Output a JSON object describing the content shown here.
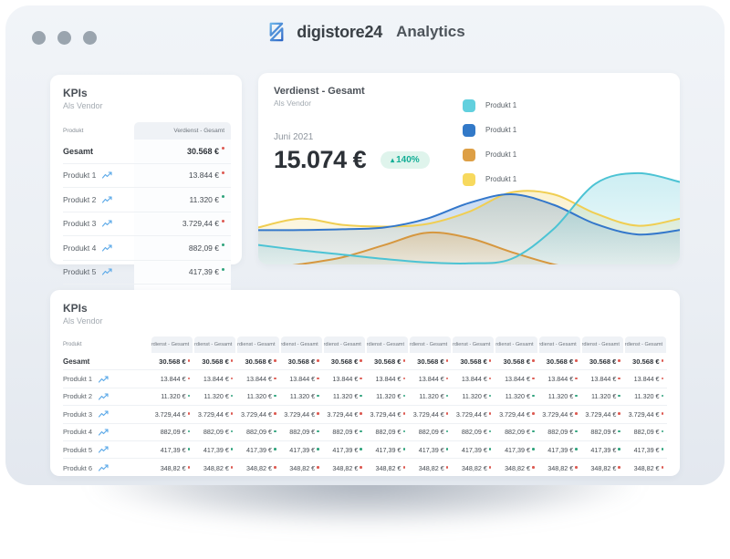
{
  "header": {
    "brand": "digistore",
    "brand_suffix": "24",
    "app": "Analytics"
  },
  "colors": {
    "mark_red": "#dd5a52",
    "mark_green": "#2fa37c",
    "badge_bg": "#dff4ec",
    "badge_text": "#13ae96",
    "logo_blue_light": "#6fb5e8",
    "logo_blue_dark": "#2d66c6",
    "spark_blue": "#5aa8e8"
  },
  "left_card": {
    "title": "KPIs",
    "subtitle": "Als Vendor",
    "product_col": "Produkt",
    "value_col": "Verdienst - Gesamt"
  },
  "bottom_card": {
    "title": "KPIs",
    "subtitle": "Als Vendor",
    "product_col": "Produkt",
    "value_col": "Verdienst - Gesamt",
    "value_col_count": 12
  },
  "kpi_rows": [
    {
      "name": "Gesamt",
      "value": "30.568 €",
      "bold": true,
      "has_spark": false,
      "mark": "#dd5a52"
    },
    {
      "name": "Produkt 1",
      "value": "13.844 €",
      "bold": false,
      "has_spark": true,
      "mark": "#dd5a52"
    },
    {
      "name": "Produkt 2",
      "value": "11.320 €",
      "bold": false,
      "has_spark": true,
      "mark": "#2fa37c"
    },
    {
      "name": "Produkt 3",
      "value": "3.729,44 €",
      "bold": false,
      "has_spark": true,
      "mark": "#dd5a52"
    },
    {
      "name": "Produkt 4",
      "value": "882,09 €",
      "bold": false,
      "has_spark": true,
      "mark": "#2fa37c"
    },
    {
      "name": "Produkt 5",
      "value": "417,39 €",
      "bold": false,
      "has_spark": true,
      "mark": "#2fa37c"
    },
    {
      "name": "Produkt 6",
      "value": "348,82 €",
      "bold": false,
      "has_spark": true,
      "mark": "#dd5a52"
    }
  ],
  "chart_card": {
    "title": "Verdienst - Gesamt",
    "subtitle": "Als Vendor",
    "period": "Juni 2021",
    "amount": "15.074 €",
    "change_icon": "▴",
    "change": "140%",
    "legend": [
      {
        "label": "Produkt 1",
        "color": "#62d0de"
      },
      {
        "label": "Produkt 1",
        "color": "#3279c8"
      },
      {
        "label": "Produkt 1",
        "color": "#dd9f45"
      },
      {
        "label": "Produkt 1",
        "color": "#f7d95e"
      }
    ]
  },
  "chart_data": {
    "type": "area",
    "title": "Verdienst - Gesamt",
    "subtitle": "Als Vendor",
    "period_label": "Juni 2021",
    "period_total": "15.074 €",
    "change_pct": "+140%",
    "axes": "hidden (decorative sparkline area chart, no ticks or gridlines)",
    "legend_position": "top-right",
    "y_unit": "relative_height_0_100",
    "x": [
      0,
      1,
      2,
      3,
      4,
      5,
      6,
      7,
      8,
      9,
      10
    ],
    "series": [
      {
        "name": "Produkt 1",
        "color": "#f0ce52",
        "values": [
          36,
          46,
          39,
          37,
          40,
          54,
          76,
          74,
          52,
          38,
          46
        ]
      },
      {
        "name": "Produkt 1",
        "color": "#3377cb",
        "values": [
          33,
          33,
          34,
          36,
          46,
          64,
          74,
          62,
          40,
          28,
          33
        ]
      },
      {
        "name": "Produkt 1",
        "color": "#d6973f",
        "values": [
          -12,
          -6,
          2,
          16,
          30,
          24,
          8,
          -6,
          -14,
          -18,
          -20
        ]
      },
      {
        "name": "Produkt 1",
        "color": "#4cc3d4",
        "values": [
          16,
          10,
          5,
          0,
          -4,
          -5,
          0,
          34,
          86,
          98,
          88
        ]
      }
    ]
  }
}
